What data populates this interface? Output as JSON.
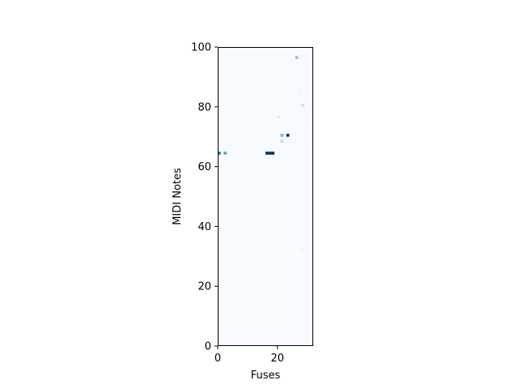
{
  "chart_data": {
    "type": "heatmap",
    "title": "",
    "xlabel": "Fuses",
    "ylabel": "MIDI Notes",
    "xlim": [
      0,
      32
    ],
    "ylim": [
      0,
      100
    ],
    "x_ticks": [
      0,
      20
    ],
    "y_ticks": [
      0,
      20,
      40,
      60,
      80,
      100
    ],
    "colormap": "Blues",
    "background_color": "#f7fbff",
    "grid": false,
    "legend": "none",
    "cells": [
      {
        "x": 0,
        "y": 64,
        "intensity": 0.75
      },
      {
        "x": 2,
        "y": 64,
        "intensity": 0.55
      },
      {
        "x": 16,
        "y": 64,
        "intensity": 1.0
      },
      {
        "x": 17,
        "y": 64,
        "intensity": 1.0
      },
      {
        "x": 18,
        "y": 64,
        "intensity": 1.0
      },
      {
        "x": 20,
        "y": 76,
        "intensity": 0.1
      },
      {
        "x": 21,
        "y": 70,
        "intensity": 0.45
      },
      {
        "x": 21,
        "y": 68,
        "intensity": 0.25
      },
      {
        "x": 23,
        "y": 70,
        "intensity": 1.0
      },
      {
        "x": 26,
        "y": 96,
        "intensity": 0.4
      },
      {
        "x": 27,
        "y": 84,
        "intensity": 0.06
      },
      {
        "x": 28,
        "y": 80,
        "intensity": 0.2
      },
      {
        "x": 28,
        "y": 32,
        "intensity": 0.05
      }
    ]
  }
}
